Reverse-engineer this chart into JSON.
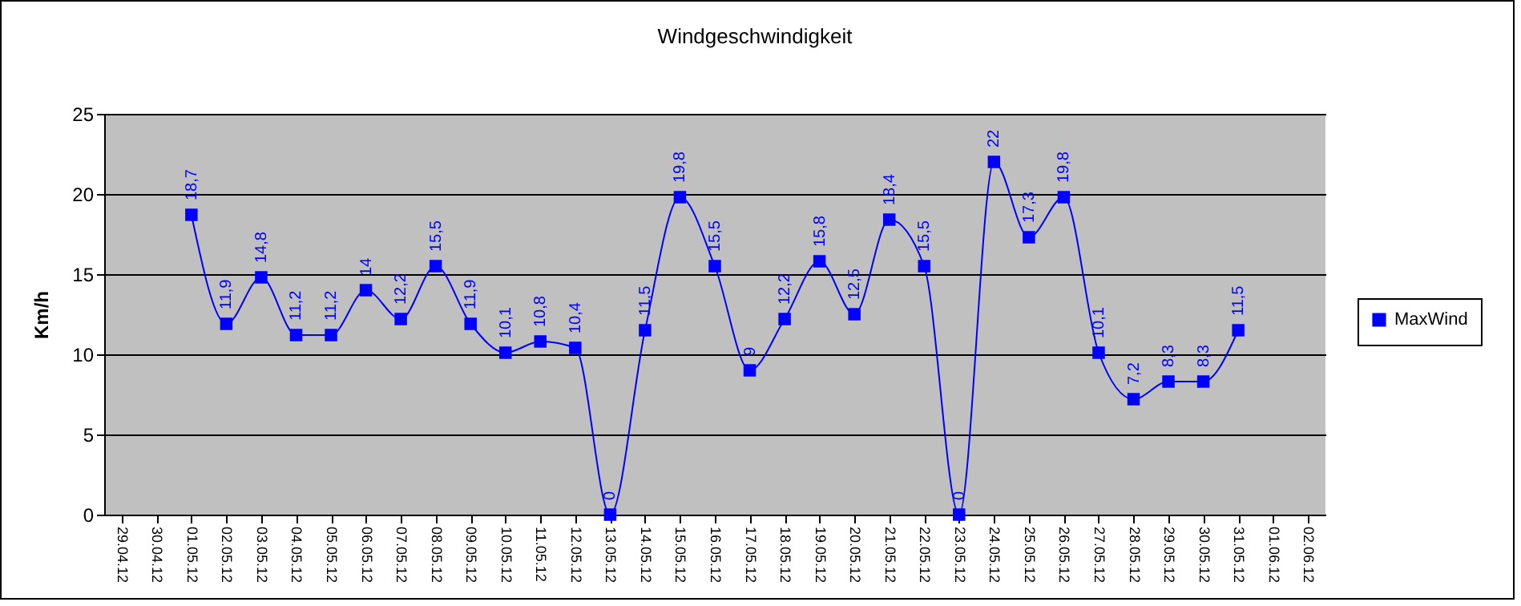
{
  "chart_data": {
    "type": "line",
    "title": "Windgeschwindigkeit",
    "ylabel": "Km/h",
    "categories": [
      "29.04.12",
      "30.04.12",
      "01.05.12",
      "02.05.12",
      "03.05.12",
      "04.05.12",
      "05.05.12",
      "06.05.12",
      "07.05.12",
      "08.05.12",
      "09.05.12",
      "10.05.12",
      "11.05.12",
      "12.05.12",
      "13.05.12",
      "14.05.12",
      "15.05.12",
      "16.05.12",
      "17.05.12",
      "18.05.12",
      "19.05.12",
      "20.05.12",
      "21.05.12",
      "22.05.12",
      "23.05.12",
      "24.05.12",
      "25.05.12",
      "26.05.12",
      "27.05.12",
      "28.05.12",
      "29.05.12",
      "30.05.12",
      "31.05.12",
      "01.06.12",
      "02.06.12"
    ],
    "series": [
      {
        "name": "MaxWind",
        "color": "#0000ff",
        "values": [
          null,
          null,
          18.7,
          11.9,
          14.8,
          11.2,
          11.2,
          14,
          12.2,
          15.5,
          11.9,
          10.1,
          10.8,
          10.4,
          0,
          11.5,
          19.8,
          15.5,
          9,
          12.2,
          15.8,
          12.5,
          18.4,
          15.5,
          0,
          22,
          17.3,
          19.8,
          10.1,
          7.2,
          8.3,
          8.3,
          11.5,
          null,
          null
        ],
        "value_labels": [
          null,
          null,
          "18,7",
          "11,9",
          "14,8",
          "11,2",
          "11,2",
          "14",
          "12,2",
          "15,5",
          "11,9",
          "10,1",
          "10,8",
          "10,4",
          "0",
          "11,5",
          "19,8",
          "15,5",
          "9",
          "12,2",
          "15,8",
          "12,5",
          "18,4",
          "15,5",
          "0",
          "22",
          "17,3",
          "19,8",
          "10,1",
          "7,2",
          "8,3",
          "8,3",
          "11,5",
          null,
          null
        ]
      }
    ],
    "ylim": [
      0,
      25
    ],
    "yticks": [
      0,
      5,
      10,
      15,
      20,
      25
    ],
    "grid": "y",
    "legend": "right",
    "marker": "square",
    "line_style": "solid"
  }
}
